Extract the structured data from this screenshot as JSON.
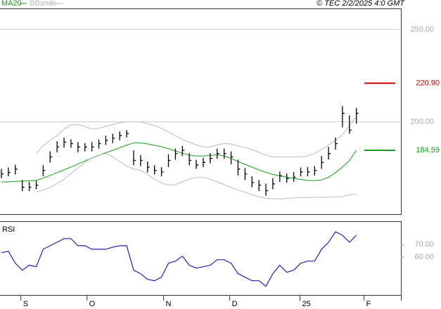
{
  "header": {
    "source": "© TEC 2/2/2025 4:0 GMT"
  },
  "chart_data": [
    {
      "type": "ohlc",
      "xlim": [
        -0.2,
        57.4
      ],
      "ylim": [
        150,
        261
      ],
      "yticks": [
        {
          "value": 250,
          "label": "250.00"
        },
        {
          "value": 200,
          "label": "200.00"
        }
      ],
      "grid": true,
      "color": "#000000",
      "high": [
        174.5,
        175.3,
        176.8,
        168.5,
        167.5,
        168.2,
        176.5,
        184,
        189.5,
        191.5,
        190.5,
        189,
        188.5,
        189,
        190.5,
        192.5,
        193.5,
        194.8,
        195.5,
        184.5,
        182,
        178.5,
        176.5,
        175.5,
        182.5,
        185.5,
        187,
        183,
        179.5,
        180.5,
        183,
        185.5,
        185.5,
        184,
        179.5,
        175,
        170.5,
        168.5,
        166.5,
        169.5,
        173,
        172,
        172.8,
        175.3,
        175.5,
        176,
        181.5,
        186.5,
        191.5,
        208.5,
        203.5,
        207.5
      ],
      "low": [
        169.5,
        170.5,
        171.5,
        162.5,
        162.5,
        163.5,
        170.5,
        178,
        183.5,
        186,
        186,
        183.5,
        184,
        184,
        185.5,
        187.5,
        188.5,
        190,
        191.5,
        176.5,
        176,
        172.5,
        171.5,
        170.5,
        175.5,
        179.5,
        181.5,
        176.5,
        174.5,
        175.5,
        177.5,
        180,
        180,
        177,
        171,
        168.5,
        164.5,
        162.5,
        160,
        163.5,
        167.5,
        167,
        167.5,
        170.5,
        170.5,
        171,
        174.5,
        179.5,
        185,
        197,
        193.5,
        199
      ],
      "close": [
        171.8,
        172.6,
        174.4,
        164.6,
        164.6,
        165.7,
        173.7,
        181,
        186.4,
        189,
        188.2,
        186.4,
        186.4,
        186.4,
        188.2,
        190,
        191.1,
        192.6,
        193.7,
        179.1,
        179.1,
        175.5,
        173.7,
        172.9,
        179.1,
        182.8,
        184.6,
        179.1,
        176.6,
        178,
        180.2,
        182.8,
        182.8,
        181,
        174.4,
        171.8,
        167.1,
        165.7,
        162.7,
        166.4,
        170.8,
        169.3,
        170,
        172.9,
        172.9,
        173.7,
        178,
        182.8,
        188.2,
        204.6,
        195.5,
        204.6
      ],
      "series": [
        {
          "name": "MA20",
          "color": "#1a9c1a",
          "values": [
            167.5,
            167.5,
            167.7,
            167.9,
            168.1,
            168.3,
            169.5,
            171,
            172.5,
            174,
            175.5,
            177.2,
            178.8,
            180.3,
            181.8,
            183.3,
            184.6,
            186,
            187.4,
            188.5,
            188.6,
            188,
            187.3,
            186.5,
            185.5,
            184.2,
            183,
            182,
            181.5,
            181.5,
            181.8,
            182.2,
            181.5,
            180.2,
            178.5,
            177,
            175.5,
            174,
            172.6,
            171.5,
            170.7,
            170,
            169.3,
            168.8,
            168.3,
            168.2,
            168.5,
            170,
            172.5,
            175.5,
            179,
            184.59
          ]
        },
        {
          "name": "BBands",
          "color": "#bbbbbb",
          "upper": [
            null,
            null,
            null,
            null,
            null,
            183,
            187,
            190,
            192.5,
            196,
            198.4,
            198.5,
            197.5,
            196,
            196.5,
            197.5,
            198.5,
            199.5,
            200,
            200,
            199.9,
            199,
            198,
            196.5,
            194.5,
            192.5,
            190.5,
            189,
            187.5,
            186.4,
            186.5,
            187.5,
            188.2,
            188,
            187,
            186,
            185,
            183.5,
            182,
            181,
            181,
            181,
            181,
            181,
            181.5,
            183,
            185,
            187.5,
            190,
            193,
            198,
            202.8
          ],
          "lower": [
            null,
            null,
            null,
            null,
            null,
            162,
            163,
            164.5,
            166.5,
            169,
            172,
            175,
            178,
            180.5,
            182,
            182.8,
            181,
            178.5,
            176,
            174.5,
            173.7,
            171.5,
            169,
            167,
            165.7,
            166,
            167.5,
            169,
            170,
            170,
            169,
            167.5,
            166,
            164.5,
            163,
            162,
            160.5,
            159.5,
            158.5,
            158.4,
            158.3,
            158.5,
            158.8,
            159,
            159.1,
            159.1,
            159.1,
            159.2,
            159.3,
            159.5,
            160.5,
            160.9
          ]
        }
      ],
      "annotations": [
        {
          "label": "220.90",
          "value": 220.9,
          "color": "#c00000"
        },
        {
          "label": "184.59",
          "value": 184.59,
          "color": "#1a9c1a"
        }
      ]
    },
    {
      "type": "line",
      "title": "RSI",
      "xlim": [
        -0.2,
        57.4
      ],
      "ylim": [
        30,
        88
      ],
      "yticks": [
        {
          "value": 70,
          "label": "70.00"
        },
        {
          "value": 60,
          "label": "60.00"
        }
      ],
      "xticks": [
        {
          "value": 2.8,
          "label": "S"
        },
        {
          "value": 12.3,
          "label": "O"
        },
        {
          "value": 23.3,
          "label": "N"
        },
        {
          "value": 32.8,
          "label": "D"
        },
        {
          "value": 42.9,
          "label": "25"
        },
        {
          "value": 52.1,
          "label": "F"
        }
      ],
      "color": "#1f1fb4",
      "values": [
        63.6,
        64.7,
        55.2,
        49.7,
        53.6,
        52.4,
        66.3,
        69.1,
        71.9,
        74.7,
        74.7,
        69.1,
        69.1,
        66.3,
        66.3,
        66.3,
        68,
        69.1,
        69.1,
        49.7,
        46.9,
        42.4,
        41.3,
        44.1,
        55.2,
        56.9,
        60.8,
        53.6,
        51.3,
        52.4,
        53.6,
        58,
        58,
        55.2,
        46.9,
        44.1,
        41.3,
        41.3,
        36.9,
        46.9,
        53.6,
        48,
        49.7,
        55.2,
        56.9,
        56.9,
        66.3,
        71.9,
        80.2,
        77.4,
        71.9,
        77.4
      ]
    }
  ]
}
